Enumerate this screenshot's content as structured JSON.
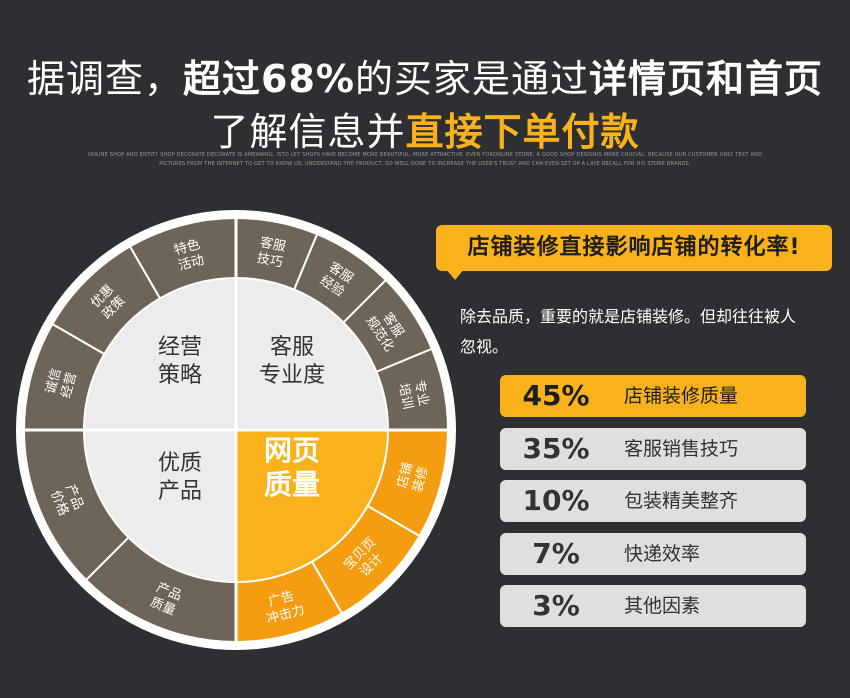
{
  "headline": {
    "line1_a": "据调查，",
    "line1_b": "超过68%",
    "line1_c": "的买家是通过",
    "line1_d": "详情页和首页",
    "line2_a": "了解信息并",
    "line2_b": "直接下单付款"
  },
  "subtext": {
    "line1": "ONLINE SHOP AND ENTITY SHOP DECORATE DECORATE IS AMEANING, ISTO LET SHOPS HAVE BECOME MORE BEAUTIFUL, MORE ATTRACTIVE. EVEN FORONLINE STORE, A GOOD SHOP DESIGNIS MORE CRUCIAL, BECAUSE OUR CUSTOMER ONLY TEXT AND",
    "line2": "PICTURES FROM THE INTERNET TO GET TO KNOW US, UNDERSTAND THE PRODUCT, SO WELL DONE TO INCREASE THE USER'S TRUST AND CAN EVEN SET UP A LAYE RECALL FOR HIS STORE BRANDS."
  },
  "wheel": {
    "quadrants": [
      {
        "lines": [
          "经营",
          "策略"
        ]
      },
      {
        "lines": [
          "客服",
          "专业度"
        ]
      },
      {
        "lines": [
          "优质",
          "产品"
        ]
      },
      {
        "lines": [
          "网页",
          "质量"
        ]
      }
    ],
    "outer": [
      {
        "lines": [
          "客服",
          "技巧"
        ]
      },
      {
        "lines": [
          "客服",
          "经验"
        ]
      },
      {
        "lines": [
          "客服",
          "规范化"
        ]
      },
      {
        "lines": [
          "专业",
          "培训"
        ]
      },
      {
        "lines": [
          "店铺",
          "装修"
        ]
      },
      {
        "lines": [
          "宝贝页",
          "设计"
        ]
      },
      {
        "lines": [
          "广告",
          "冲击力"
        ]
      },
      {
        "lines": [
          "产品",
          "质量"
        ]
      },
      {
        "lines": [
          "产品",
          "价格"
        ]
      },
      {
        "lines": [
          "诚信",
          "经营"
        ]
      },
      {
        "lines": [
          "优惠",
          "政策"
        ]
      },
      {
        "lines": [
          "特色",
          "活动"
        ]
      }
    ]
  },
  "callout": {
    "tag": "店铺装修直接影响店铺的转化率!",
    "desc": "除去品质，重要的就是店铺装修。但却往往被人忽视。"
  },
  "stats": [
    {
      "pct": "45%",
      "label": "店铺装修质量",
      "highlight": true
    },
    {
      "pct": "35%",
      "label": "客服销售技巧",
      "highlight": false
    },
    {
      "pct": "10%",
      "label": "包装精美整齐",
      "highlight": false
    },
    {
      "pct": "7%",
      "label": "快递效率",
      "highlight": false
    },
    {
      "pct": "3%",
      "label": "其他因素",
      "highlight": false
    }
  ],
  "colors": {
    "background": "#2e2f33",
    "accent": "#f9b21b",
    "accent_dark": "#f49d10",
    "segment": "#6e6558",
    "inner": "#ececec",
    "stat_bg": "#dfdfdf"
  }
}
